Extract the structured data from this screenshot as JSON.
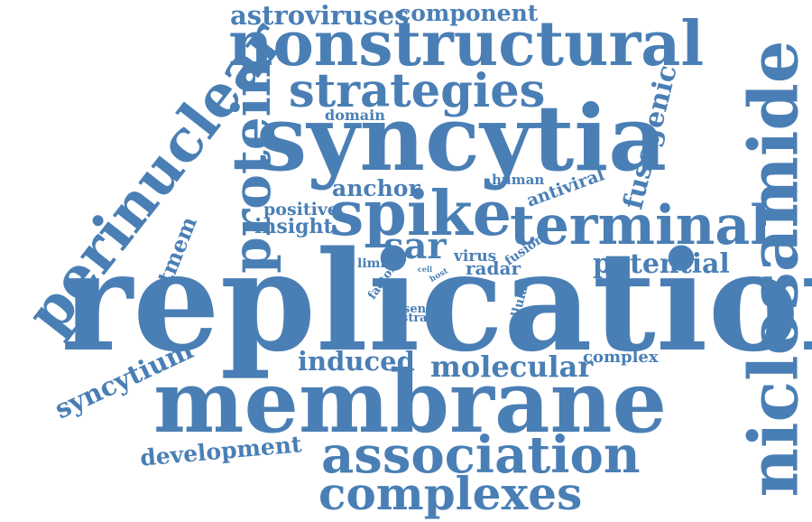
{
  "color": "#4a7fb5",
  "words": {
    "astroviruses": "astroviruses",
    "component": "component",
    "nonstructural": "nonstructural",
    "strategies": "strategies",
    "perinuclear": "perinuclear",
    "protein": "protein",
    "domain": "domain",
    "syncytia": "syncytia",
    "fusogenic": "fusogenic",
    "niclosamide": "niclosamide",
    "human": "human",
    "antiviral": "antiviral",
    "anchor": "anchor",
    "positive": "positive",
    "insight": "insight",
    "spike": "spike",
    "terminal": "terminal",
    "tmem": "tmem",
    "sar": "sar",
    "limit": "limit",
    "virus": "virus",
    "fusion": "fusion",
    "cell": "cell",
    "host": "host",
    "radar": "radar",
    "potential": "potential",
    "factor": "factor",
    "replication": "replication",
    "sense": "sense",
    "strain": "strain",
    "cellular": "cellular",
    "syncytium": "syncytium",
    "induced": "induced",
    "molecular": "molecular",
    "complex": "complex",
    "membrane": "membrane",
    "development": "development",
    "association": "association",
    "complexes": "complexes"
  }
}
